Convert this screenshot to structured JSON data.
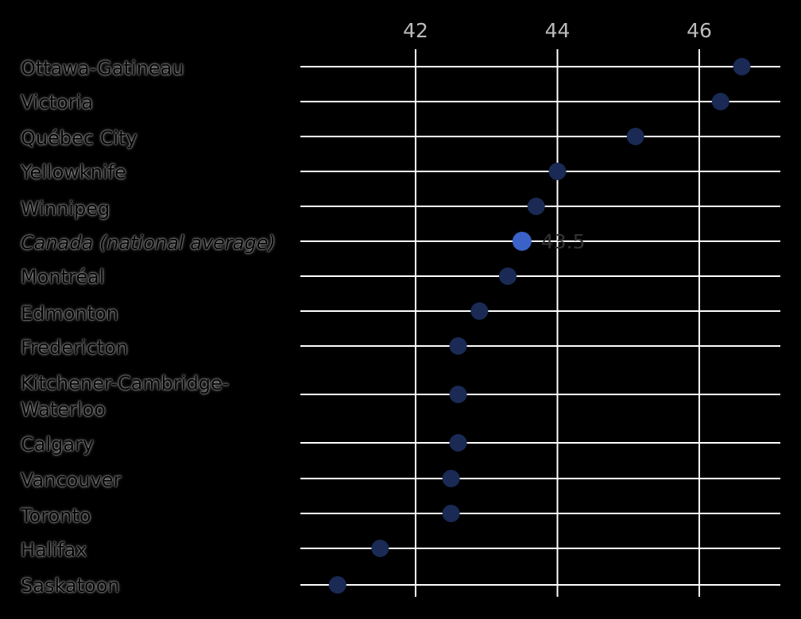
{
  "chart_data": {
    "type": "scatter",
    "orientation": "horizontal-dot",
    "x_ticks": [
      "42",
      "44",
      "46"
    ],
    "x_tick_values": [
      42,
      44,
      46
    ],
    "xlim": [
      40.4,
      47.1
    ],
    "grid": true,
    "x_axis_position": "top",
    "highlight_category": "Canada (national average)",
    "highlight_label": "43.5",
    "colors": {
      "background": "#000000",
      "grid": "#ffffff",
      "tick_label": "#bbbbbb",
      "point": "#1a2a55",
      "highlight_point": "#3a62c8",
      "highlight_label": "#333333"
    },
    "categories": [
      {
        "label": "Ottawa-Gatineau",
        "value": 46.6
      },
      {
        "label": "Victoria",
        "value": 46.3
      },
      {
        "label": "Québec City",
        "value": 45.1
      },
      {
        "label": "Yellowknife",
        "value": 44.0
      },
      {
        "label": "Winnipeg",
        "value": 43.7
      },
      {
        "label": "Canada (national average)",
        "value": 43.5,
        "italic": true,
        "highlight": true
      },
      {
        "label": "Montréal",
        "value": 43.3
      },
      {
        "label": "Edmonton",
        "value": 42.9
      },
      {
        "label": "Fredericton",
        "value": 42.6
      },
      {
        "label": "Kitchener-Cambridge-Waterloo",
        "label_lines": [
          "Kitchener-Cambridge-",
          "Waterloo"
        ],
        "value": 42.6
      },
      {
        "label": "Calgary",
        "value": 42.6
      },
      {
        "label": "Vancouver",
        "value": 42.5
      },
      {
        "label": "Toronto",
        "value": 42.5
      },
      {
        "label": "Halifax",
        "value": 41.5
      },
      {
        "label": "Saskatoon",
        "value": 40.9
      }
    ]
  }
}
